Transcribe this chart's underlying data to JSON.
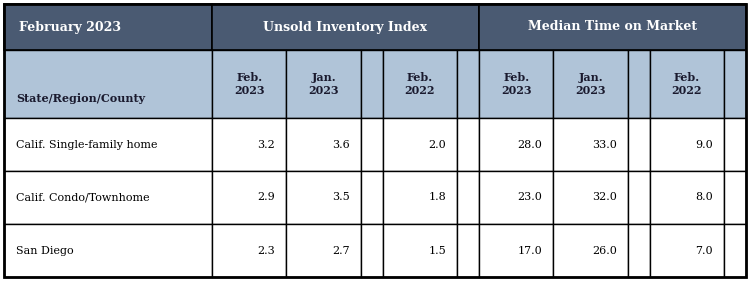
{
  "title_left": "February 2023",
  "title_mid": "Unsold Inventory Index",
  "title_right": "Median Time on Market",
  "sub_header": "State/Region/County",
  "rows": [
    [
      "Calif. Single-family home",
      "3.2",
      "3.6",
      "",
      "2.0",
      "",
      "28.0",
      "33.0",
      "",
      "9.0",
      ""
    ],
    [
      "Calif. Condo/Townhome",
      "2.9",
      "3.5",
      "",
      "1.8",
      "",
      "23.0",
      "32.0",
      "",
      "8.0",
      ""
    ],
    [
      "San Diego",
      "2.3",
      "2.7",
      "",
      "1.5",
      "",
      "17.0",
      "26.0",
      "",
      "7.0",
      ""
    ]
  ],
  "dark_header_bg": "#4a5a72",
  "light_header_bg": "#b0c4d8",
  "white_bg": "#ffffff",
  "border_color": "#000000",
  "figsize": [
    7.5,
    2.81
  ],
  "dpi": 100
}
